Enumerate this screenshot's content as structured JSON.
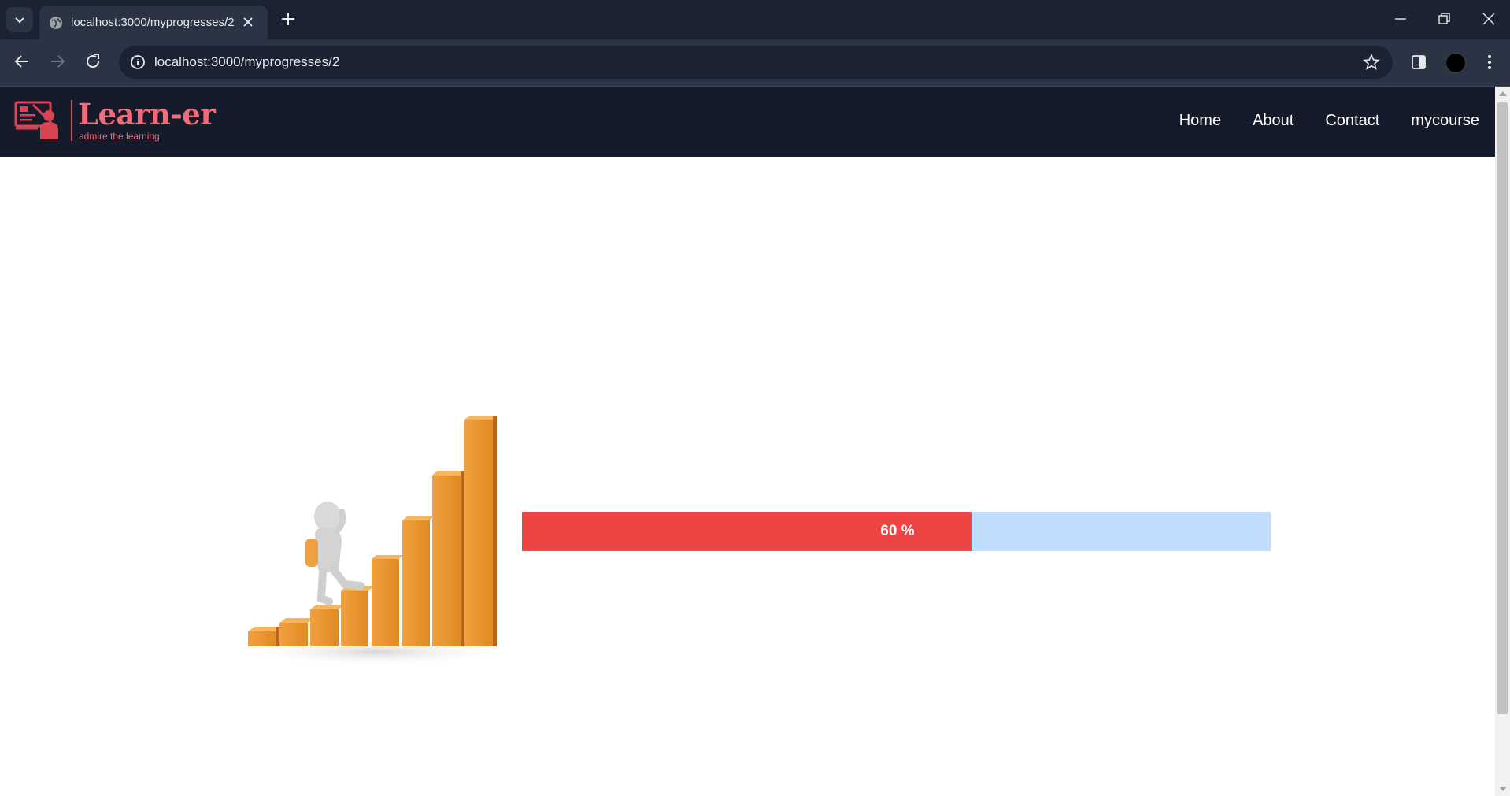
{
  "browser": {
    "tab_title": "localhost:3000/myprogresses/2",
    "url": "localhost:3000/myprogresses/2",
    "icons": [
      "tab-search-icon",
      "globe-icon",
      "close-icon",
      "plus-icon",
      "minimize-icon",
      "restore-icon",
      "window-close-icon",
      "back-icon",
      "forward-icon",
      "reload-icon",
      "info-icon",
      "star-icon",
      "side-panel-icon",
      "menu-dots-icon"
    ]
  },
  "site": {
    "brand": "Learn-er",
    "tagline": "admire the learning",
    "nav": [
      {
        "label": "Home"
      },
      {
        "label": "About"
      },
      {
        "label": "Contact"
      },
      {
        "label": "mycourse"
      }
    ],
    "colors": {
      "navbar": "#151b2a",
      "accent": "#f26b7b"
    }
  },
  "progress": {
    "value": 60,
    "label": "60 %",
    "colors": {
      "fill": "#ef4444",
      "track": "#bfdbfe"
    }
  }
}
